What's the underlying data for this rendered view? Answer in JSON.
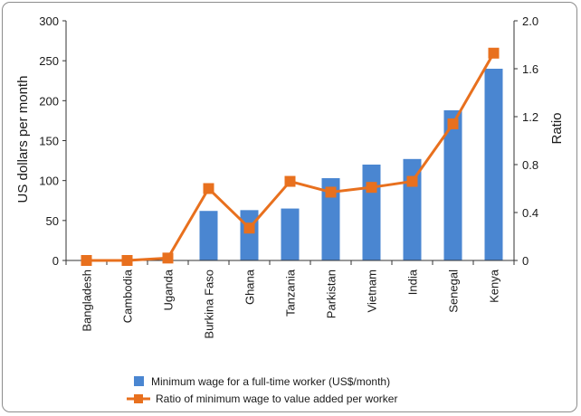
{
  "chart_data": {
    "type": "bar",
    "categories": [
      "Bangladesh",
      "Cambodia",
      "Uganda",
      "Burkina Faso",
      "Ghana",
      "Tanzania",
      "Parkistan",
      "Vietnam",
      "India",
      "Senegal",
      "Kenya"
    ],
    "series": [
      {
        "name": "Minimum wage for a full-time worker (US$/month)",
        "type": "bar",
        "axis": "left",
        "color": "#4a86d1",
        "values": [
          0,
          0,
          0,
          62,
          63,
          65,
          103,
          120,
          127,
          188,
          240
        ]
      },
      {
        "name": "Ratio of minimum wage to value added per worker",
        "type": "line",
        "axis": "right",
        "color": "#e8701e",
        "values": [
          0.0,
          0.0,
          0.02,
          0.6,
          0.27,
          0.66,
          0.57,
          0.61,
          0.66,
          1.14,
          1.73
        ]
      }
    ],
    "ylabel": "US dollars per month",
    "ylim": [
      0,
      300
    ],
    "yticks": [
      0,
      50,
      100,
      150,
      200,
      250,
      300
    ],
    "y2label": "Ratio",
    "y2lim": [
      0,
      2.0
    ],
    "y2ticks": [
      "0",
      "0.4",
      "0.8",
      "1.2",
      "1.6",
      "2.0"
    ],
    "legend_position": "bottom",
    "grid": false
  }
}
